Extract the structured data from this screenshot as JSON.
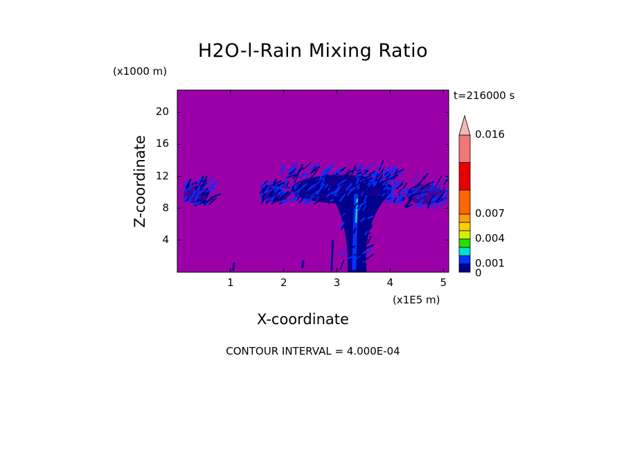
{
  "chart_data": {
    "type": "heatmap",
    "title": "H2O-l-Rain Mixing Ratio",
    "xlabel": "X-coordinate",
    "ylabel": "Z-coordinate",
    "x_unit": "(x1E5 m)",
    "y_unit": "(x1000 m)",
    "time_label": "t=216000 s",
    "footer": "CONTOUR INTERVAL = 4.000E-04",
    "xlim": [
      0,
      5.1
    ],
    "ylim": [
      0,
      22.8
    ],
    "x_ticks": [
      "1",
      "2",
      "3",
      "4",
      "5"
    ],
    "x_tick_values": [
      1,
      2,
      3,
      4,
      5
    ],
    "y_ticks": [
      "4",
      "8",
      "12",
      "16",
      "20"
    ],
    "y_tick_values": [
      4,
      8,
      12,
      16,
      20
    ],
    "background_color": "#9b00a8",
    "colorbar": {
      "levels": [
        0,
        0.001,
        0.002,
        0.003,
        0.004,
        0.005,
        0.006,
        0.007,
        0.01,
        0.013,
        0.016
      ],
      "colors": [
        "#00008c",
        "#0033ff",
        "#00e0d0",
        "#22e000",
        "#d8f000",
        "#ffd000",
        "#ff9c00",
        "#ff6600",
        "#e80000",
        "#f07878"
      ],
      "tick_labels": [
        "0",
        "0.001",
        "0.004",
        "0.007",
        "0.016"
      ],
      "tick_values": [
        0,
        0.001,
        0.004,
        0.007,
        0.016
      ],
      "extend_top_color": "#f2b8b8"
    },
    "features": [
      {
        "name": "central rain column",
        "x_range": [
          3.0,
          3.6
        ],
        "z_range": [
          0,
          12.5
        ],
        "max_value": 0.003
      },
      {
        "name": "left cell",
        "x_range": [
          0.05,
          0.65
        ],
        "z_range": [
          8.2,
          11.2
        ],
        "max_value": 0.001
      },
      {
        "name": "mid-left cell",
        "x_range": [
          1.55,
          1.95
        ],
        "z_range": [
          8.5,
          11.0
        ],
        "max_value": 0.001
      },
      {
        "name": "anvil",
        "x_range": [
          1.95,
          4.2
        ],
        "z_range": [
          8.5,
          13.0
        ],
        "max_value": 0.001
      },
      {
        "name": "right cell",
        "x_range": [
          4.2,
          5.1
        ],
        "z_range": [
          8.0,
          11.5
        ],
        "max_value": 0.001
      }
    ]
  }
}
